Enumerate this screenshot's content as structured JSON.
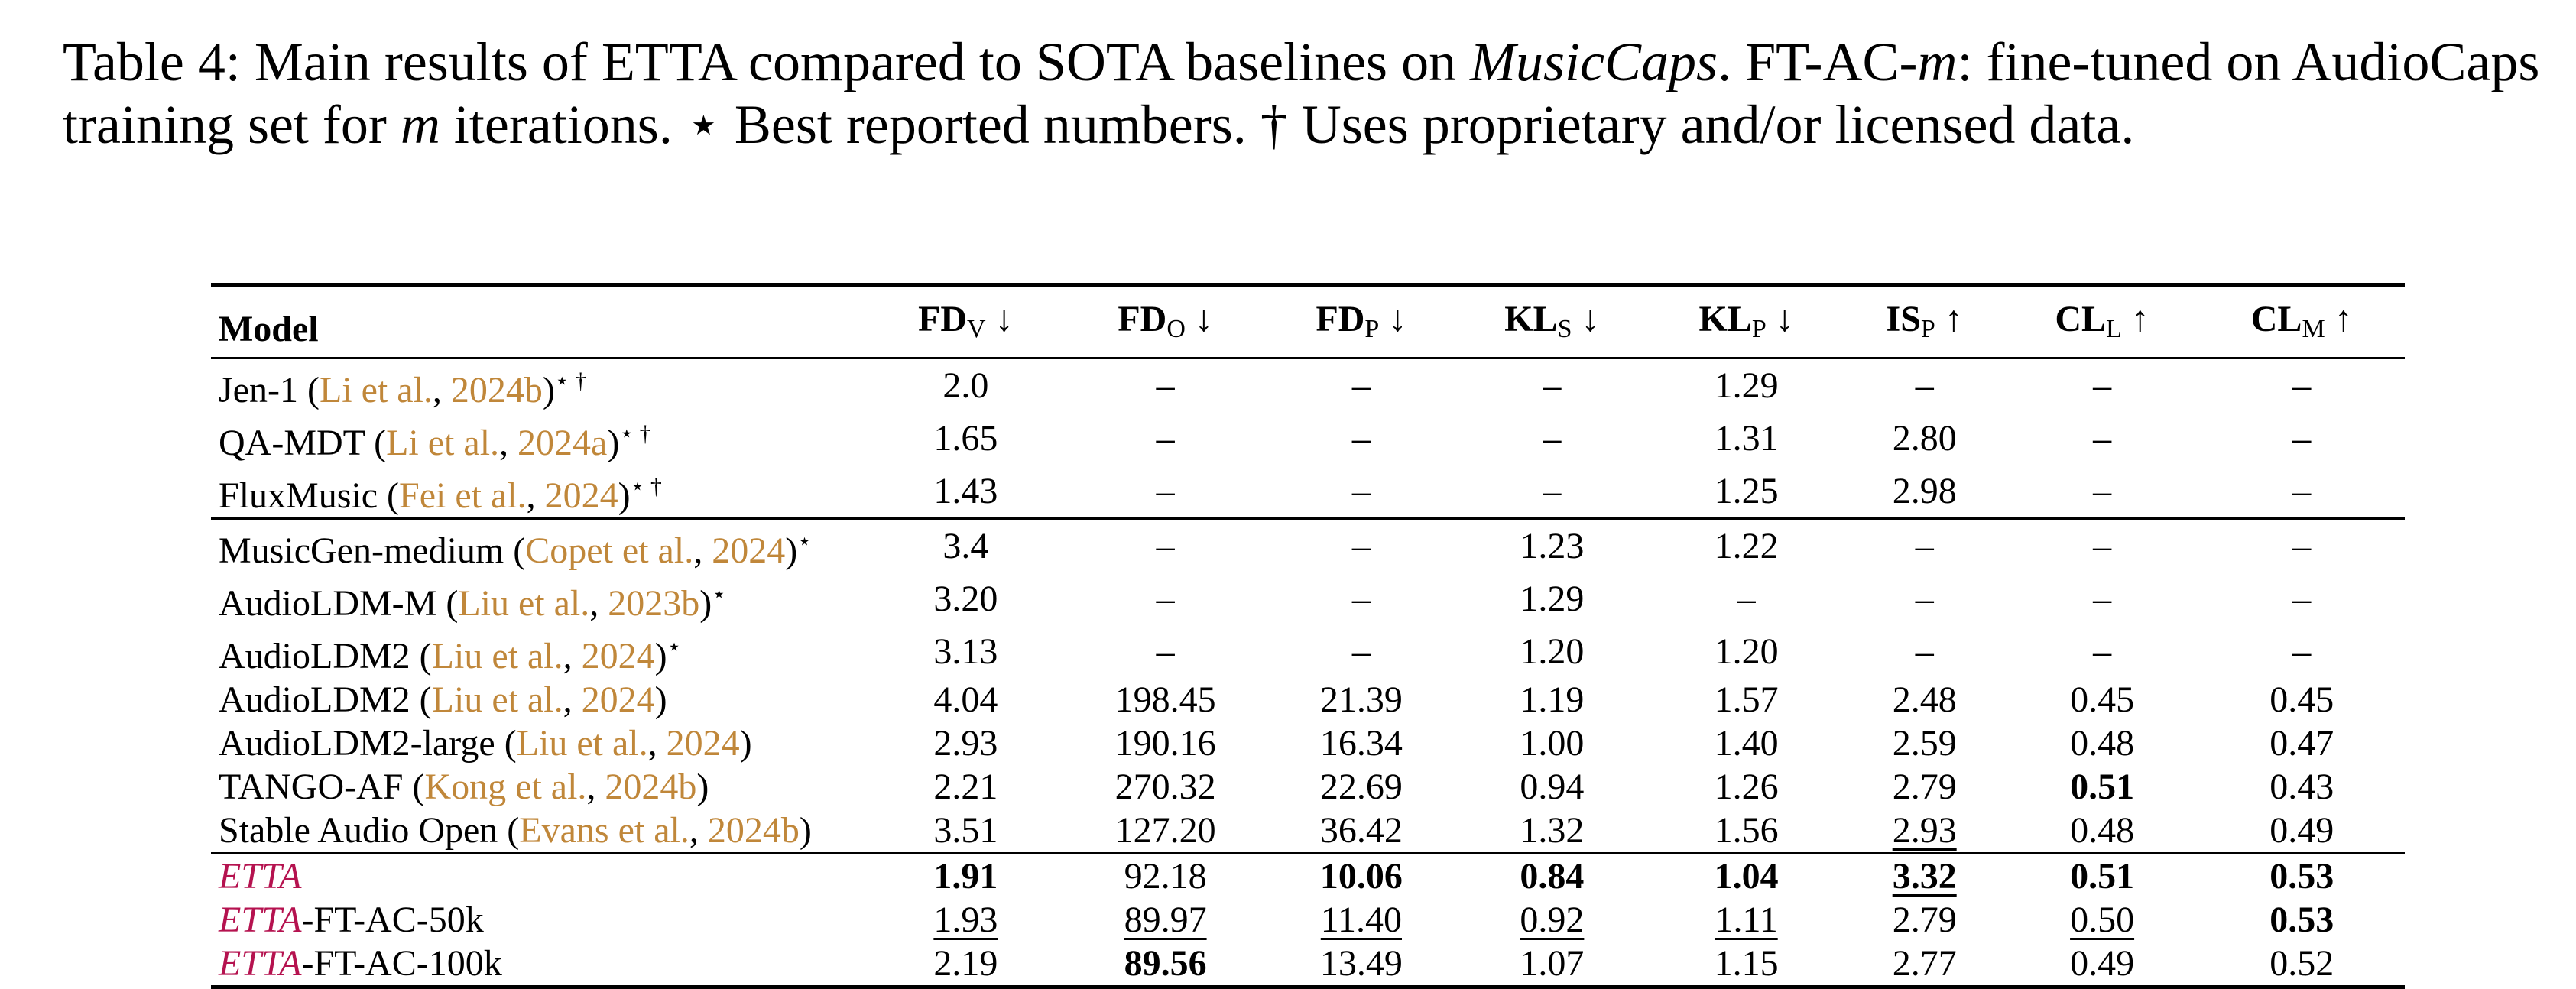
{
  "caption": {
    "prefix": "Table 4: Main results of ETTA compared to SOTA baselines on ",
    "dataset": "MusicCaps",
    "mid1": ". FT-AC-",
    "m_symbol": "m",
    "mid2": ": fine-tuned on AudioCaps training set for ",
    "mid3": " iterations. ",
    "star": "⋆",
    "star_text": " Best reported numbers. ",
    "dagger": "†",
    "dagger_text": " Uses proprietary and/or licensed data."
  },
  "table": {
    "columns": [
      {
        "base": "Model",
        "sub": "",
        "arrow": ""
      },
      {
        "base": "FD",
        "sub": "V",
        "arrow": "↓"
      },
      {
        "base": "FD",
        "sub": "O",
        "arrow": "↓"
      },
      {
        "base": "FD",
        "sub": "P",
        "arrow": "↓"
      },
      {
        "base": "KL",
        "sub": "S",
        "arrow": "↓"
      },
      {
        "base": "KL",
        "sub": "P",
        "arrow": "↓"
      },
      {
        "base": "IS",
        "sub": "P",
        "arrow": "↑"
      },
      {
        "base": "CL",
        "sub": "L",
        "arrow": "↑"
      },
      {
        "base": "CL",
        "sub": "M",
        "arrow": "↑"
      }
    ],
    "groups": [
      [
        {
          "name": "Jen-1",
          "etta": false,
          "cite_author": "Li et al.",
          "cite_year": "2024b",
          "marks": "⋆ †",
          "values": [
            {
              "v": "2.0"
            },
            {
              "v": "–"
            },
            {
              "v": "–"
            },
            {
              "v": "–"
            },
            {
              "v": "1.29"
            },
            {
              "v": "–"
            },
            {
              "v": "–"
            },
            {
              "v": "–"
            }
          ]
        },
        {
          "name": "QA-MDT",
          "etta": false,
          "cite_author": "Li et al.",
          "cite_year": "2024a",
          "marks": "⋆ †",
          "values": [
            {
              "v": "1.65"
            },
            {
              "v": "–"
            },
            {
              "v": "–"
            },
            {
              "v": "–"
            },
            {
              "v": "1.31"
            },
            {
              "v": "2.80"
            },
            {
              "v": "–"
            },
            {
              "v": "–"
            }
          ]
        },
        {
          "name": "FluxMusic",
          "etta": false,
          "cite_author": "Fei et al.",
          "cite_year": "2024",
          "marks": "⋆ †",
          "values": [
            {
              "v": "1.43"
            },
            {
              "v": "–"
            },
            {
              "v": "–"
            },
            {
              "v": "–"
            },
            {
              "v": "1.25"
            },
            {
              "v": "2.98"
            },
            {
              "v": "–"
            },
            {
              "v": "–"
            }
          ]
        }
      ],
      [
        {
          "name": "MusicGen-medium",
          "etta": false,
          "cite_author": "Copet et al.",
          "cite_year": "2024",
          "marks": "⋆",
          "values": [
            {
              "v": "3.4"
            },
            {
              "v": "–"
            },
            {
              "v": "–"
            },
            {
              "v": "1.23"
            },
            {
              "v": "1.22"
            },
            {
              "v": "–"
            },
            {
              "v": "–"
            },
            {
              "v": "–"
            }
          ]
        },
        {
          "name": "AudioLDM-M",
          "etta": false,
          "cite_author": "Liu et al.",
          "cite_year": "2023b",
          "marks": "⋆",
          "values": [
            {
              "v": "3.20"
            },
            {
              "v": "–"
            },
            {
              "v": "–"
            },
            {
              "v": "1.29"
            },
            {
              "v": "–"
            },
            {
              "v": "–"
            },
            {
              "v": "–"
            },
            {
              "v": "–"
            }
          ]
        },
        {
          "name": "AudioLDM2",
          "etta": false,
          "cite_author": "Liu et al.",
          "cite_year": "2024",
          "marks": "⋆",
          "values": [
            {
              "v": "3.13"
            },
            {
              "v": "–"
            },
            {
              "v": "–"
            },
            {
              "v": "1.20"
            },
            {
              "v": "1.20"
            },
            {
              "v": "–"
            },
            {
              "v": "–"
            },
            {
              "v": "–"
            }
          ]
        },
        {
          "name": "AudioLDM2",
          "etta": false,
          "cite_author": "Liu et al.",
          "cite_year": "2024",
          "marks": "",
          "values": [
            {
              "v": "4.04"
            },
            {
              "v": "198.45"
            },
            {
              "v": "21.39"
            },
            {
              "v": "1.19"
            },
            {
              "v": "1.57"
            },
            {
              "v": "2.48"
            },
            {
              "v": "0.45"
            },
            {
              "v": "0.45"
            }
          ]
        },
        {
          "name": "AudioLDM2-large",
          "etta": false,
          "cite_author": "Liu et al.",
          "cite_year": "2024",
          "marks": "",
          "values": [
            {
              "v": "2.93"
            },
            {
              "v": "190.16"
            },
            {
              "v": "16.34"
            },
            {
              "v": "1.00"
            },
            {
              "v": "1.40"
            },
            {
              "v": "2.59"
            },
            {
              "v": "0.48"
            },
            {
              "v": "0.47"
            }
          ]
        },
        {
          "name": "TANGO-AF",
          "etta": false,
          "cite_author": "Kong et al.",
          "cite_year": "2024b",
          "marks": "",
          "values": [
            {
              "v": "2.21"
            },
            {
              "v": "270.32"
            },
            {
              "v": "22.69"
            },
            {
              "v": "0.94"
            },
            {
              "v": "1.26"
            },
            {
              "v": "2.79"
            },
            {
              "v": "0.51",
              "bold": true
            },
            {
              "v": "0.43"
            }
          ]
        },
        {
          "name": "Stable Audio Open",
          "etta": false,
          "cite_author": "Evans et al.",
          "cite_year": "2024b",
          "marks": "",
          "values": [
            {
              "v": "3.51"
            },
            {
              "v": "127.20"
            },
            {
              "v": "36.42"
            },
            {
              "v": "1.32"
            },
            {
              "v": "1.56"
            },
            {
              "v": "2.93",
              "underline": true
            },
            {
              "v": "0.48"
            },
            {
              "v": "0.49"
            }
          ]
        }
      ],
      [
        {
          "name": "ETTA",
          "etta": true,
          "suffix": "",
          "cite_author": "",
          "cite_year": "",
          "marks": "",
          "values": [
            {
              "v": "1.91",
              "bold": true
            },
            {
              "v": "92.18"
            },
            {
              "v": "10.06",
              "bold": true
            },
            {
              "v": "0.84",
              "bold": true
            },
            {
              "v": "1.04",
              "bold": true
            },
            {
              "v": "3.32",
              "bold": true,
              "underline": true
            },
            {
              "v": "0.51",
              "bold": true
            },
            {
              "v": "0.53",
              "bold": true
            }
          ]
        },
        {
          "name": "ETTA",
          "etta": true,
          "suffix": "-FT-AC-50k",
          "cite_author": "",
          "cite_year": "",
          "marks": "",
          "values": [
            {
              "v": "1.93",
              "underline": true
            },
            {
              "v": "89.97",
              "underline": true
            },
            {
              "v": "11.40",
              "underline": true
            },
            {
              "v": "0.92",
              "underline": true
            },
            {
              "v": "1.11",
              "underline": true
            },
            {
              "v": "2.79"
            },
            {
              "v": "0.50",
              "underline": true
            },
            {
              "v": "0.53",
              "bold": true
            }
          ]
        },
        {
          "name": "ETTA",
          "etta": true,
          "suffix": "-FT-AC-100k",
          "cite_author": "",
          "cite_year": "",
          "marks": "",
          "values": [
            {
              "v": "2.19"
            },
            {
              "v": "89.56",
              "bold": true
            },
            {
              "v": "13.49"
            },
            {
              "v": "1.07"
            },
            {
              "v": "1.15"
            },
            {
              "v": "2.77"
            },
            {
              "v": "0.49"
            },
            {
              "v": "0.52"
            }
          ]
        }
      ]
    ]
  }
}
